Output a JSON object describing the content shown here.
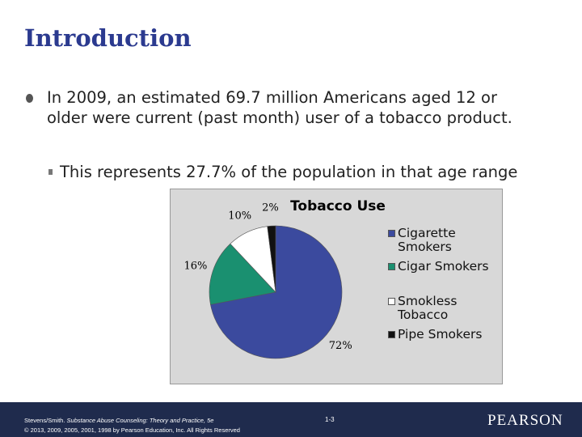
{
  "slide": {
    "title": "Introduction",
    "bullet": "In 2009, an estimated 69.7 million Americans aged 12 or older were current (past month) user of a tobacco product.",
    "sub_bullet": "This represents 27.7% of the population in that age range"
  },
  "chart_data": {
    "type": "pie",
    "title": "Tobacco Use",
    "categories": [
      "Cigarette Smokers",
      "Cigar Smokers",
      "Smokless Tobacco",
      "Pipe Smokers"
    ],
    "values": [
      72,
      16,
      10,
      2
    ],
    "value_labels": [
      "72%",
      "16%",
      "10%",
      "2%"
    ],
    "colors": [
      "#3b4a9e",
      "#1a9070",
      "#ffffff",
      "#111111"
    ]
  },
  "footer": {
    "citation_author": "Stevens/Smith.",
    "citation_title": "Substance Abuse Counseling: Theory and Practice, 5e",
    "copyright": "© 2013, 2009, 2005, 2001, 1998 by Pearson Education, Inc. All Rights Reserved",
    "page": "1-3",
    "brand": "PEARSON"
  }
}
